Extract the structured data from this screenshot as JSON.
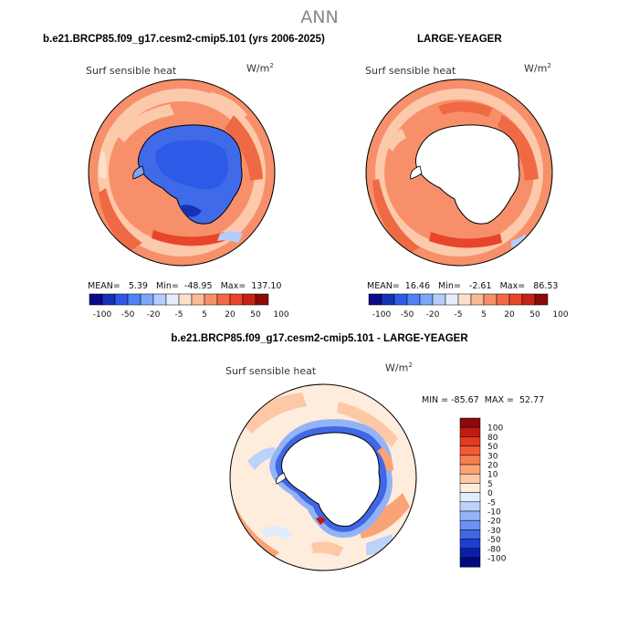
{
  "page": {
    "title": "ANN"
  },
  "panels": [
    {
      "title": "b.e21.BRCP85.f09_g17.cesm2-cmip5.101 (yrs 2006-2025)",
      "variable": "Surf sensible heat",
      "units_base": "W/m",
      "units_exp": "2",
      "stats": "MEAN=   5.39   Min=  -48.95   Max=  137.10",
      "colorbar_ticks": [
        "-100",
        "-50",
        "-20",
        "-5",
        "5",
        "20",
        "50",
        "100"
      ]
    },
    {
      "title": "LARGE-YEAGER",
      "variable": "Surf sensible heat",
      "units_base": "W/m",
      "units_exp": "2",
      "stats": "MEAN=  16.46   Min=   -2.61   Max=   86.53",
      "colorbar_ticks": [
        "-100",
        "-50",
        "-20",
        "-5",
        "5",
        "20",
        "50",
        "100"
      ]
    }
  ],
  "diff_panel": {
    "title": "b.e21.BRCP85.f09_g17.cesm2-cmip5.101 - LARGE-YEAGER",
    "variable": "Surf sensible heat",
    "units_base": "W/m",
    "units_exp": "2",
    "stats": "MIN = -85.67  MAX =  52.77",
    "colorbar_labels": [
      "100",
      "80",
      "50",
      "30",
      "20",
      "10",
      "5",
      "0",
      "-5",
      "-10",
      "-20",
      "-30",
      "-50",
      "-80",
      "-100"
    ]
  },
  "colors": {
    "top_colorbar": [
      "#0a0a8a",
      "#1432b4",
      "#2d5ae6",
      "#4f82f5",
      "#7ba6fa",
      "#b4cdfc",
      "#e6eefd",
      "#fde0cc",
      "#fbb995",
      "#f79069",
      "#f26a45",
      "#e8452a",
      "#c62318",
      "#8c0a0a"
    ],
    "diff_colorbar": [
      "#8c0a0a",
      "#c41a14",
      "#e33a20",
      "#f25a32",
      "#f77f50",
      "#faa476",
      "#fcc8a6",
      "#feecdc",
      "#e2ecfc",
      "#bcd2fa",
      "#93b3f6",
      "#6a92f0",
      "#3f67e6",
      "#1d3fcf",
      "#0a1fa8",
      "#020a80"
    ],
    "ocean_warm": "#f7906a",
    "ocean_pale": "#fcc9ab",
    "ocean_strong": "#ef6a44",
    "antarctic_cold": "#3f6ae8",
    "land_mask": "#ffffff"
  }
}
